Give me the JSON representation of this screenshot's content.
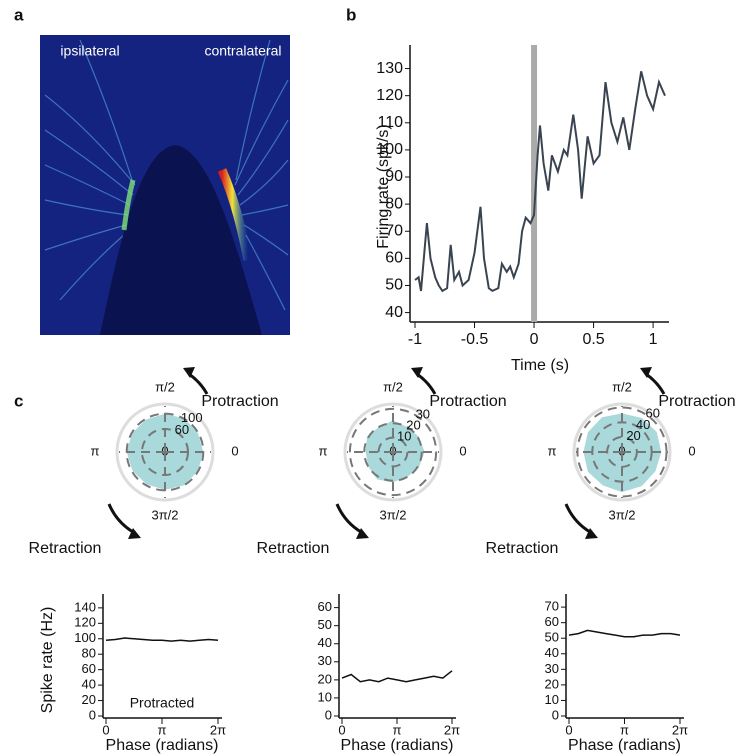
{
  "panel_labels": [
    "a",
    "b",
    "c"
  ],
  "image_panel": {
    "left_label": "ipsilateral",
    "right_label": "contralateral"
  },
  "chart_data": [
    {
      "type": "line",
      "xlabel": "Time (s)",
      "ylabel": "Firing rate (spk/s)",
      "color": "#3a4450",
      "x": [
        -1,
        -0.97,
        -0.95,
        -0.9,
        -0.87,
        -0.83,
        -0.8,
        -0.77,
        -0.73,
        -0.7,
        -0.67,
        -0.63,
        -0.6,
        -0.55,
        -0.5,
        -0.45,
        -0.42,
        -0.38,
        -0.35,
        -0.3,
        -0.27,
        -0.23,
        -0.2,
        -0.17,
        -0.13,
        -0.1,
        -0.07,
        -0.03,
        0,
        0.03,
        0.05,
        0.08,
        0.12,
        0.15,
        0.2,
        0.25,
        0.28,
        0.33,
        0.37,
        0.4,
        0.45,
        0.5,
        0.55,
        0.6,
        0.65,
        0.7,
        0.75,
        0.8,
        0.85,
        0.9,
        0.95,
        1,
        1.05,
        1.1
      ],
      "values": [
        52,
        53,
        48,
        73,
        60,
        53,
        50,
        48,
        49,
        65,
        52,
        55,
        50,
        52,
        62,
        79,
        60,
        49,
        48,
        49,
        58,
        55,
        57,
        53,
        58,
        70,
        75,
        73,
        76,
        98,
        109,
        95,
        85,
        98,
        92,
        100,
        98,
        113,
        100,
        82,
        105,
        95,
        98,
        125,
        110,
        103,
        112,
        100,
        115,
        129,
        120,
        115,
        125,
        120
      ],
      "event_x": 0,
      "xlim": [
        -1,
        1.1
      ],
      "xticks": [
        -1,
        -0.5,
        0,
        0.5,
        1
      ],
      "ylim": [
        38,
        135
      ],
      "yticks": [
        40,
        50,
        60,
        70,
        80,
        90,
        100,
        110,
        120,
        130
      ]
    },
    {
      "type": "polar",
      "color": "#a9d9db",
      "annotations": [
        "Protraction",
        "Retraction"
      ],
      "theta": [
        0,
        0.5236,
        1.0472,
        1.5708,
        2.0944,
        2.618,
        3.1416,
        3.6652,
        4.1888,
        4.7124,
        5.236,
        5.7596
      ],
      "values": [
        100,
        99,
        101,
        100,
        98,
        99,
        100,
        98,
        97,
        99,
        100,
        99
      ],
      "rlim": [
        0,
        120
      ],
      "rticks": [
        0,
        60,
        100
      ],
      "thetaticks": [
        0,
        {
          "value": 1.5708,
          "label": "π/2"
        },
        {
          "value": 3.1416,
          "label": "π"
        },
        {
          "value": 4.7124,
          "label": "3π/2"
        }
      ]
    },
    {
      "type": "polar",
      "color": "#a9d9db",
      "annotations": [
        "Protraction",
        "Retraction"
      ],
      "theta": [
        0,
        0.5236,
        1.0472,
        1.5708,
        2.0944,
        2.618,
        3.1416,
        3.6652,
        4.1888,
        4.7124,
        5.236,
        5.7596
      ],
      "values": [
        22,
        21,
        20,
        22,
        20,
        21,
        19,
        20,
        22,
        21,
        20,
        21
      ],
      "rlim": [
        0,
        32
      ],
      "rticks": [
        0,
        10,
        20,
        30
      ],
      "thetaticks": [
        0,
        {
          "value": 1.5708,
          "label": "π/2"
        },
        {
          "value": 3.1416,
          "label": "π"
        },
        {
          "value": 4.7124,
          "label": "3π/2"
        }
      ]
    },
    {
      "type": "polar",
      "color": "#a9d9db",
      "annotations": [
        "Protraction",
        "Retraction"
      ],
      "theta": [
        0,
        0.5236,
        1.0472,
        1.5708,
        2.0944,
        2.618,
        3.1416,
        3.6652,
        4.1888,
        4.7124,
        5.236,
        5.7596
      ],
      "values": [
        53,
        54,
        53,
        52,
        54,
        53,
        52,
        53,
        52,
        54,
        53,
        52
      ],
      "rlim": [
        0,
        62
      ],
      "rticks": [
        0,
        20,
        40,
        60
      ],
      "thetaticks": [
        0,
        {
          "value": 1.5708,
          "label": "π/2"
        },
        {
          "value": 3.1416,
          "label": "π"
        },
        {
          "value": 4.7124,
          "label": "3π/2"
        }
      ]
    },
    {
      "type": "line",
      "xlabel": "Phase (radians)",
      "ylabel": "Spike rate (Hz)",
      "annotation": "Protracted",
      "color": "#111111",
      "x": [
        0,
        0.5236,
        1.0472,
        1.5708,
        2.0944,
        2.618,
        3.1416,
        3.6652,
        4.1888,
        4.7124,
        5.236,
        5.7596,
        6.2832
      ],
      "values": [
        98,
        99,
        101,
        100,
        99,
        98,
        98,
        97,
        98,
        97,
        98,
        99,
        98
      ],
      "xlim": [
        0,
        6.2832
      ],
      "xticks": [
        0,
        {
          "value": 3.1416,
          "label": "π"
        },
        {
          "value": 6.2832,
          "label": "2π"
        }
      ],
      "ylim": [
        0,
        145
      ],
      "yticks": [
        0,
        20,
        40,
        60,
        80,
        100,
        120,
        140
      ]
    },
    {
      "type": "line",
      "xlabel": "Phase (radians)",
      "color": "#111111",
      "x": [
        0,
        0.5236,
        1.0472,
        1.5708,
        2.0944,
        2.618,
        3.1416,
        3.6652,
        4.1888,
        4.7124,
        5.236,
        5.7596,
        6.2832
      ],
      "values": [
        21,
        23,
        19,
        20,
        19,
        21,
        20,
        19,
        20,
        21,
        22,
        21,
        25
      ],
      "xlim": [
        0,
        6.2832
      ],
      "xticks": [
        0,
        {
          "value": 3.1416,
          "label": "π"
        },
        {
          "value": 6.2832,
          "label": "2π"
        }
      ],
      "ylim": [
        0,
        62
      ],
      "yticks": [
        0,
        10,
        20,
        30,
        40,
        50,
        60
      ]
    },
    {
      "type": "line",
      "xlabel": "Phase (radians)",
      "color": "#111111",
      "x": [
        0,
        0.5236,
        1.0472,
        1.5708,
        2.0944,
        2.618,
        3.1416,
        3.6652,
        4.1888,
        4.7124,
        5.236,
        5.7596,
        6.2832
      ],
      "values": [
        52,
        53,
        55,
        54,
        53,
        52,
        51,
        51,
        52,
        52,
        53,
        53,
        52
      ],
      "xlim": [
        0,
        6.2832
      ],
      "xticks": [
        0,
        {
          "value": 3.1416,
          "label": "π"
        },
        {
          "value": 6.2832,
          "label": "2π"
        }
      ],
      "ylim": [
        0,
        72
      ],
      "yticks": [
        0,
        10,
        20,
        30,
        40,
        50,
        60,
        70
      ]
    }
  ]
}
